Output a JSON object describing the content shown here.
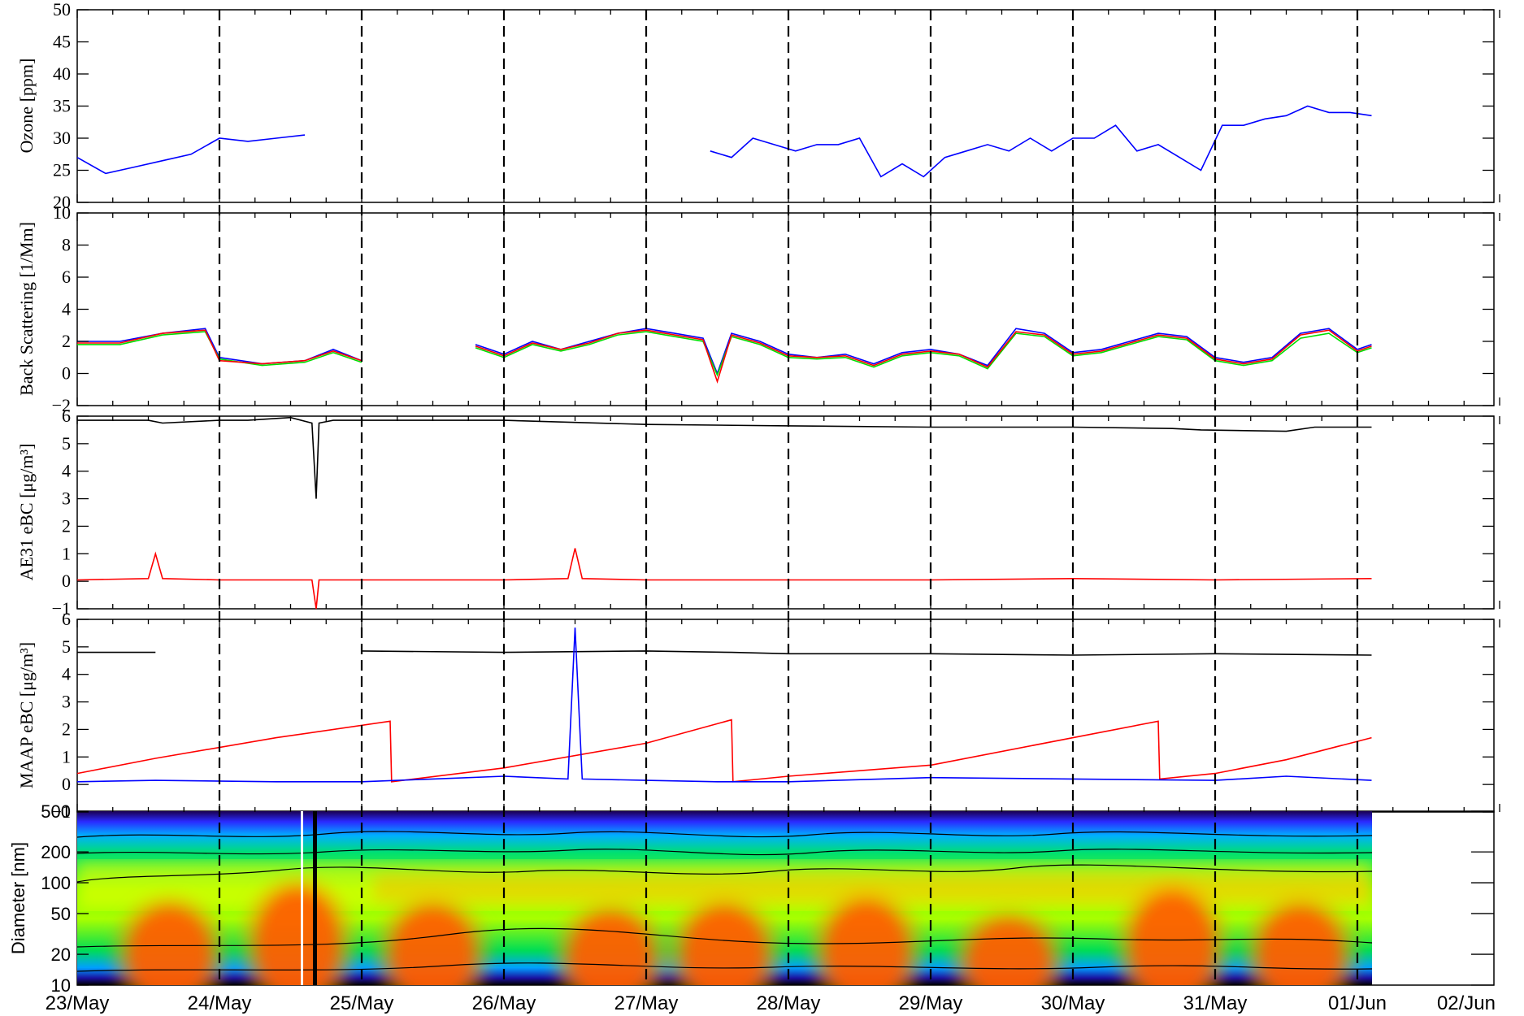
{
  "chart_data": [
    {
      "type": "line",
      "panel": "ozone",
      "ylabel": "Ozone [ppm]",
      "ylim": [
        20,
        50
      ],
      "yticks": [
        "20",
        "25",
        "30",
        "35",
        "40",
        "45",
        "50"
      ],
      "series": [
        {
          "color": "#0000ff",
          "x": [
            0,
            0.2,
            0.4,
            0.6,
            0.8,
            1.0,
            1.2,
            1.4,
            1.6,
            2.0,
            4.45,
            4.6,
            4.75,
            4.9,
            5.05,
            5.2,
            5.35,
            5.5,
            5.65,
            5.8,
            5.95,
            6.1,
            6.25,
            6.4,
            6.55,
            6.7,
            6.85,
            7.0,
            7.15,
            7.3,
            7.45,
            7.6,
            7.75,
            7.9,
            8.05,
            8.2,
            8.35,
            8.5,
            8.65,
            8.8,
            8.95,
            9.1
          ],
          "y": [
            27,
            24.5,
            25.5,
            26.5,
            27.5,
            30,
            29.5,
            30,
            30.5,
            null,
            28,
            27,
            30,
            29,
            28,
            29,
            29,
            30,
            24,
            26,
            24,
            27,
            28,
            29,
            28,
            30,
            28,
            30,
            30,
            32,
            28,
            29,
            27,
            25,
            32,
            32,
            33,
            33.5,
            35,
            34,
            34,
            33.5
          ]
        }
      ]
    },
    {
      "type": "line",
      "panel": "back-scattering",
      "ylabel": "Back Scattering [1/Mm]",
      "ylim": [
        -2,
        10
      ],
      "yticks": [
        "−2",
        "0",
        "2",
        "4",
        "6",
        "8",
        "10"
      ],
      "series": [
        {
          "color": "#0000ff",
          "x": [
            0,
            0.3,
            0.6,
            0.9,
            1.0,
            1.3,
            1.6,
            1.8,
            2.0,
            2.6,
            2.8,
            3.0,
            3.2,
            3.4,
            3.6,
            3.8,
            4.0,
            4.2,
            4.4,
            4.5,
            4.6,
            4.8,
            5.0,
            5.2,
            5.4,
            5.6,
            5.8,
            6.0,
            6.2,
            6.4,
            6.6,
            6.8,
            7.0,
            7.2,
            7.4,
            7.6,
            7.8,
            8.0,
            8.2,
            8.4,
            8.6,
            8.8,
            9.0,
            9.1
          ],
          "y": [
            2,
            2,
            2.5,
            2.8,
            1,
            0.6,
            0.8,
            1.5,
            0.8,
            null,
            1.8,
            1.2,
            2,
            1.5,
            2,
            2.5,
            2.8,
            2.5,
            2.2,
            0,
            2.5,
            2,
            1.2,
            1,
            1.2,
            0.6,
            1.3,
            1.5,
            1.2,
            0.5,
            2.8,
            2.5,
            1.3,
            1.5,
            2,
            2.5,
            2.3,
            1,
            0.7,
            1,
            2.5,
            2.8,
            1.5,
            1.8
          ]
        },
        {
          "color": "#00dd00",
          "x": [
            0,
            0.3,
            0.6,
            0.9,
            1.0,
            1.3,
            1.6,
            1.8,
            2.0,
            2.6,
            2.8,
            3.0,
            3.2,
            3.4,
            3.6,
            3.8,
            4.0,
            4.2,
            4.4,
            4.5,
            4.6,
            4.8,
            5.0,
            5.2,
            5.4,
            5.6,
            5.8,
            6.0,
            6.2,
            6.4,
            6.6,
            6.8,
            7.0,
            7.2,
            7.4,
            7.6,
            7.8,
            8.0,
            8.2,
            8.4,
            8.6,
            8.8,
            9.0,
            9.1
          ],
          "y": [
            1.8,
            1.8,
            2.4,
            2.6,
            0.9,
            0.5,
            0.7,
            1.3,
            0.7,
            null,
            1.6,
            1,
            1.8,
            1.4,
            1.8,
            2.4,
            2.6,
            2.3,
            2,
            -0.1,
            2.3,
            1.8,
            1,
            0.9,
            1,
            0.4,
            1.1,
            1.3,
            1.1,
            0.3,
            2.5,
            2.3,
            1.1,
            1.3,
            1.8,
            2.3,
            2.1,
            0.8,
            0.5,
            0.8,
            2.2,
            2.5,
            1.3,
            1.6
          ]
        },
        {
          "color": "#ff0000",
          "x": [
            0,
            0.3,
            0.6,
            0.9,
            1.0,
            1.3,
            1.6,
            1.8,
            2.0,
            2.6,
            2.8,
            3.0,
            3.2,
            3.4,
            3.6,
            3.8,
            4.0,
            4.2,
            4.4,
            4.5,
            4.6,
            4.8,
            5.0,
            5.2,
            5.4,
            5.6,
            5.8,
            6.0,
            6.2,
            6.4,
            6.6,
            6.8,
            7.0,
            7.2,
            7.4,
            7.6,
            7.8,
            8.0,
            8.2,
            8.4,
            8.6,
            8.8,
            9.0,
            9.1
          ],
          "y": [
            1.9,
            1.9,
            2.5,
            2.7,
            0.8,
            0.6,
            0.8,
            1.4,
            0.8,
            null,
            1.7,
            1.1,
            1.9,
            1.5,
            1.9,
            2.5,
            2.7,
            2.4,
            2.1,
            -0.5,
            2.4,
            1.9,
            1.1,
            1,
            1.1,
            0.5,
            1.2,
            1.4,
            1.2,
            0.4,
            2.6,
            2.4,
            1.2,
            1.4,
            1.9,
            2.4,
            2.2,
            0.9,
            0.6,
            0.9,
            2.4,
            2.7,
            1.4,
            1.7
          ]
        }
      ]
    },
    {
      "type": "line",
      "panel": "ae31",
      "ylabel": "AE31   eBC [μg/m³]",
      "ylim": [
        -1,
        6
      ],
      "yticks": [
        "−1",
        "0",
        "1",
        "2",
        "3",
        "4",
        "5",
        "6"
      ],
      "series": [
        {
          "color": "#000000",
          "x": [
            0,
            0.5,
            0.6,
            1.0,
            1.2,
            1.5,
            1.65,
            1.68,
            1.7,
            1.8,
            2.0,
            3.0,
            4.0,
            5.0,
            6.0,
            7.0,
            7.7,
            7.9,
            8.5,
            8.7,
            9.1
          ],
          "y": [
            5.85,
            5.85,
            5.75,
            5.85,
            5.85,
            5.95,
            5.75,
            3.0,
            5.75,
            5.85,
            5.85,
            5.85,
            5.7,
            5.65,
            5.6,
            5.6,
            5.55,
            5.5,
            5.45,
            5.6,
            5.6
          ]
        },
        {
          "color": "#ff0000",
          "x": [
            0,
            0.5,
            0.55,
            0.6,
            1.0,
            1.5,
            1.65,
            1.68,
            1.7,
            2.0,
            3.0,
            3.45,
            3.5,
            3.55,
            4.0,
            5.0,
            6.0,
            7.0,
            8.0,
            9.1
          ],
          "y": [
            0.05,
            0.1,
            1.0,
            0.1,
            0.05,
            0.05,
            0.05,
            -1,
            0.05,
            0.05,
            0.05,
            0.1,
            1.2,
            0.1,
            0.05,
            0.05,
            0.05,
            0.1,
            0.05,
            0.1
          ]
        }
      ]
    },
    {
      "type": "line",
      "panel": "maap",
      "ylabel": "MAAP   eBC [μg/m³]",
      "ylim": [
        -1,
        6
      ],
      "yticks": [
        "−1",
        "0",
        "1",
        "2",
        "3",
        "4",
        "5",
        "6"
      ],
      "series": [
        {
          "color": "#000000",
          "x": [
            0,
            0.55,
            1.4,
            2.0,
            3.0,
            4.0,
            4.6,
            5.0,
            6.0,
            7.0,
            8.0,
            9.1
          ],
          "y": [
            4.8,
            4.8,
            null,
            4.85,
            4.8,
            4.85,
            4.8,
            4.75,
            4.75,
            4.7,
            4.75,
            4.7
          ]
        },
        {
          "color": "#ff0000",
          "x": [
            0,
            0.55,
            1.4,
            2.2,
            2.21,
            3.0,
            4.0,
            4.6,
            4.61,
            5.0,
            6.0,
            7.6,
            7.61,
            8.0,
            8.5,
            9.1
          ],
          "y": [
            0.4,
            0.95,
            1.7,
            2.3,
            0.1,
            0.6,
            1.5,
            2.35,
            0.1,
            0.3,
            0.7,
            2.3,
            0.2,
            0.4,
            0.9,
            1.7
          ]
        },
        {
          "color": "#0000ff",
          "x": [
            0,
            0.55,
            1.4,
            2.0,
            2.5,
            3.0,
            3.45,
            3.5,
            3.55,
            4.0,
            4.5,
            5.0,
            6.0,
            7.0,
            8.0,
            8.5,
            9.1
          ],
          "y": [
            0.1,
            0.15,
            0.1,
            0.1,
            0.2,
            0.3,
            0.2,
            5.7,
            0.2,
            0.15,
            0.1,
            0.1,
            0.25,
            0.2,
            0.15,
            0.3,
            0.15
          ]
        }
      ]
    },
    {
      "type": "heatmap",
      "panel": "size-distribution",
      "ylabel": "Diameter [nm]",
      "ylim": [
        10,
        500
      ],
      "yscale": "log",
      "yticks": [
        "10",
        "20",
        "50",
        "100",
        "200",
        "500"
      ],
      "events": [
        {
          "x": 0.65,
          "peak_d": 40
        },
        {
          "x": 1.55,
          "peak_d": 60
        },
        {
          "x": 2.5,
          "peak_d": 40
        },
        {
          "x": 3.75,
          "peak_d": 35
        },
        {
          "x": 4.55,
          "peak_d": 40
        },
        {
          "x": 5.55,
          "peak_d": 45
        },
        {
          "x": 6.55,
          "peak_d": 30
        },
        {
          "x": 7.7,
          "peak_d": 55
        },
        {
          "x": 8.6,
          "peak_d": 40
        }
      ]
    }
  ],
  "x_axis": {
    "tick_labels": [
      "23/May",
      "24/May",
      "25/May",
      "26/May",
      "27/May",
      "28/May",
      "29/May",
      "30/May",
      "31/May",
      "01/Jun",
      "02/Jun"
    ]
  }
}
